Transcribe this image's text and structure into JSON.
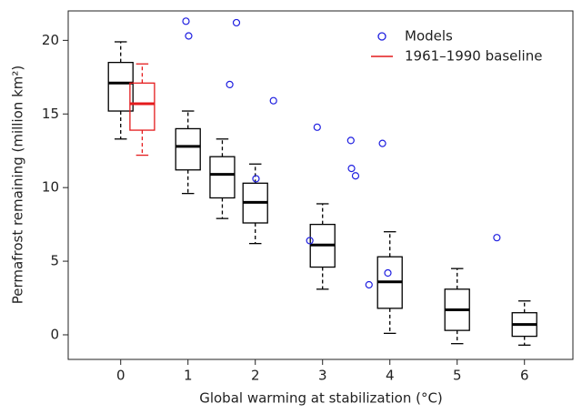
{
  "chart_data": {
    "type": "box",
    "xlabel": "Global warming at stabilization (°C)",
    "ylabel": "Permafrost remaining (million km²)",
    "xlim": [
      -0.78,
      6.72
    ],
    "ylim": [
      -1.67,
      22.0
    ],
    "xticks": [
      0,
      1,
      2,
      3,
      4,
      5,
      6
    ],
    "yticks": [
      0,
      5,
      10,
      15,
      20
    ],
    "legend": "top-right",
    "box_series": [
      {
        "color": "#000000",
        "boxes": [
          {
            "x": 0,
            "stats": [
              13.3,
              15.2,
              17.1,
              18.5,
              19.9
            ]
          },
          {
            "x": 1,
            "stats": [
              9.6,
              11.2,
              12.8,
              14.0,
              15.2
            ]
          },
          {
            "x": 1.51,
            "stats": [
              7.9,
              9.3,
              10.9,
              12.1,
              13.3
            ]
          },
          {
            "x": 2,
            "stats": [
              6.2,
              7.6,
              9.0,
              10.3,
              11.6
            ]
          },
          {
            "x": 3,
            "stats": [
              3.1,
              4.6,
              6.1,
              7.5,
              8.9
            ]
          },
          {
            "x": 4,
            "stats": [
              0.1,
              1.8,
              3.6,
              5.3,
              7.0
            ]
          },
          {
            "x": 5,
            "stats": [
              -0.6,
              0.3,
              1.7,
              3.1,
              4.5
            ]
          },
          {
            "x": 6,
            "stats": [
              -0.7,
              -0.1,
              0.7,
              1.5,
              2.3
            ]
          }
        ]
      },
      {
        "name": "1961–1990 baseline",
        "color": "#e41a1c",
        "boxes": [
          {
            "x": 0.32,
            "stats": [
              12.2,
              13.9,
              15.7,
              17.1,
              18.4
            ]
          }
        ]
      }
    ],
    "series": [
      {
        "name": "Models",
        "color": "#1f1fe0",
        "x": [
          0.97,
          1.01,
          1.72,
          1.62,
          2.27,
          2.01,
          2.92,
          3.42,
          3.43,
          3.49,
          3.89,
          2.81,
          3.69,
          3.97,
          5.59
        ],
        "y": [
          21.3,
          20.3,
          21.2,
          17.0,
          15.9,
          10.6,
          14.1,
          13.2,
          11.3,
          10.8,
          13.0,
          6.4,
          3.4,
          4.2,
          6.6
        ]
      }
    ]
  }
}
